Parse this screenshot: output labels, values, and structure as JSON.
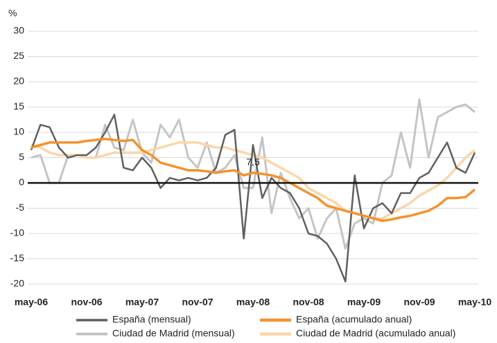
{
  "chart_data": {
    "type": "line",
    "y_label": "%",
    "annotation": "7,5",
    "categories": [
      "may-06",
      null,
      null,
      null,
      null,
      null,
      "nov-06",
      null,
      null,
      null,
      null,
      null,
      "may-07",
      null,
      null,
      null,
      null,
      null,
      "nov-07",
      null,
      null,
      null,
      null,
      null,
      "may-08",
      null,
      null,
      null,
      null,
      null,
      "nov-08",
      null,
      null,
      null,
      null,
      null,
      "may-09",
      null,
      null,
      null,
      null,
      null,
      "nov-09",
      null,
      null,
      null,
      null,
      null,
      "may-10"
    ],
    "series": [
      {
        "name": "España (mensual)",
        "color": "#5f5f5f",
        "width": 2.5,
        "values": [
          6.5,
          11.5,
          11,
          7,
          5,
          5.5,
          5.5,
          7,
          10,
          13.5,
          3,
          2.5,
          5,
          3,
          -1,
          1,
          0.5,
          1,
          0.5,
          1,
          3,
          9.5,
          10.5,
          -11,
          7.5,
          -3,
          1,
          -1,
          -2,
          -5,
          -10,
          -10.5,
          -12,
          -15,
          -19.5,
          1.5,
          -9,
          -5,
          -4,
          -6,
          -2,
          -2,
          1,
          2,
          5,
          8,
          3,
          2,
          6
        ]
      },
      {
        "name": "España (acumulado anual)",
        "color": "#f3922e",
        "width": 3.5,
        "values": [
          7,
          7.5,
          8,
          8,
          8,
          8,
          8.3,
          8.5,
          8.7,
          8.5,
          8.3,
          8.5,
          6.5,
          5.5,
          4,
          3.5,
          3,
          2.5,
          2.5,
          2.3,
          2,
          2.3,
          2.5,
          1.5,
          2,
          1.8,
          1.5,
          1,
          0,
          -1,
          -2,
          -3,
          -4.5,
          -5,
          -5.5,
          -6,
          -6.5,
          -7,
          -7.5,
          -7.2,
          -6.8,
          -6.5,
          -6,
          -5.5,
          -4.5,
          -3,
          -3,
          -2.8,
          -1.3
        ]
      },
      {
        "name": "Ciudad de Madrid (mensual)",
        "color": "#c4c4c4",
        "width": 3,
        "values": [
          5,
          5.5,
          0,
          0,
          5.5,
          5.5,
          5,
          5,
          11.5,
          7,
          6.5,
          12.5,
          6,
          4,
          11.5,
          9,
          12.5,
          5,
          3,
          8,
          2,
          3,
          5.5,
          -1,
          -1,
          9,
          -6,
          2,
          -3,
          -7,
          -5,
          -11,
          -7,
          -5,
          -13,
          -8,
          -7,
          -8,
          0,
          1.5,
          10,
          3,
          16.5,
          5,
          13,
          14,
          15,
          15.5,
          14
        ]
      },
      {
        "name": "Ciudad de Madrid (acumulado anual)",
        "color": "#fbd6aa",
        "width": 3.5,
        "values": [
          7.5,
          7,
          6,
          5.5,
          5.5,
          5.5,
          5,
          5,
          5.5,
          6,
          6,
          6,
          6,
          6.5,
          7,
          7.5,
          8,
          8,
          8,
          7.5,
          7,
          7,
          6.5,
          6,
          5.5,
          5,
          4,
          3,
          2,
          1,
          -1,
          -2,
          -3,
          -4,
          -5.5,
          -6,
          -6.5,
          -7,
          -7,
          -6,
          -5,
          -4,
          -2.5,
          -1.5,
          -0.5,
          1,
          3,
          5,
          6.5
        ]
      }
    ],
    "ylim": [
      -20,
      30
    ],
    "yticks": [
      -20,
      -15,
      -10,
      -5,
      0,
      5,
      10,
      15,
      20,
      25,
      30
    ],
    "grid": true
  }
}
